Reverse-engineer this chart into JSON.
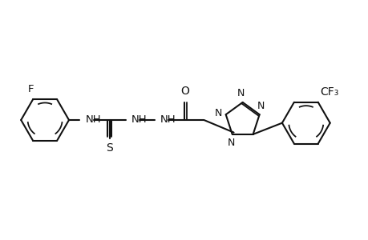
{
  "bg": "#ffffff",
  "lc": "#111111",
  "lw": 1.5,
  "fs": 9.5,
  "xlim": [
    0,
    10
  ],
  "ylim": [
    0,
    6.5
  ]
}
